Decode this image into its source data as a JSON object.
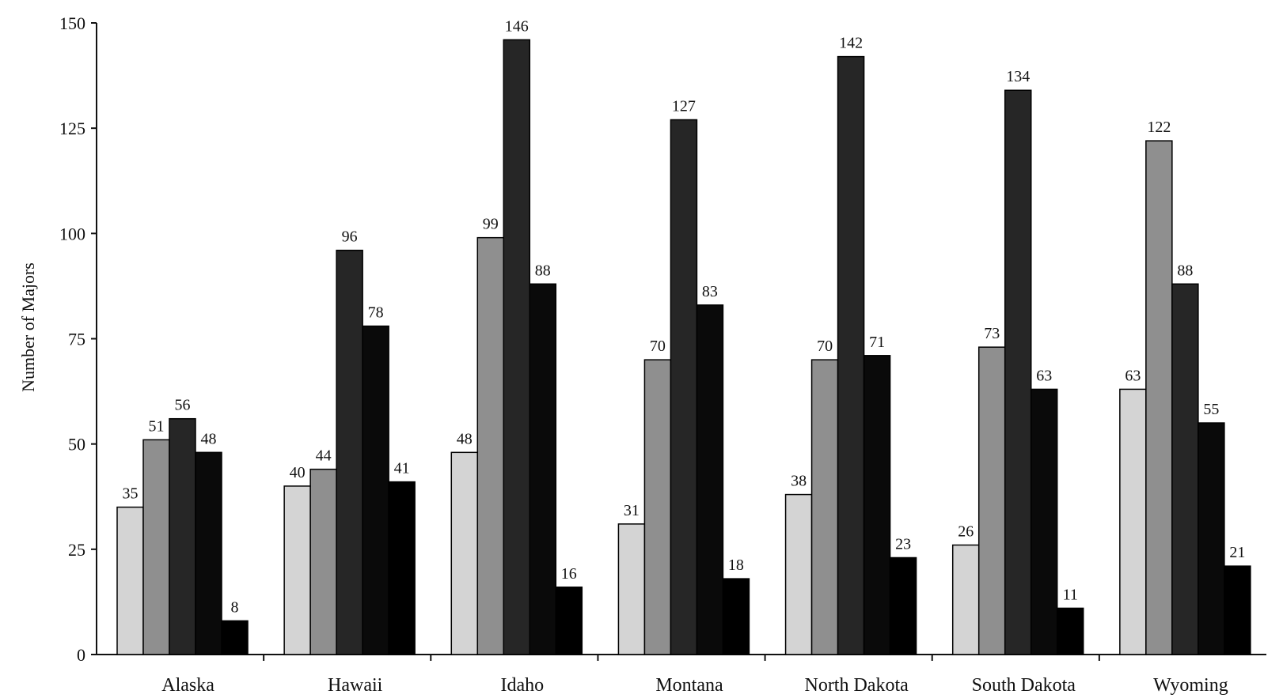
{
  "chart_data": {
    "type": "bar",
    "title": "",
    "xlabel": "",
    "ylabel": "Number of Majors",
    "ylim": [
      0,
      150
    ],
    "yticks": [
      0,
      25,
      50,
      75,
      100,
      125,
      150
    ],
    "grid": false,
    "legend": "none",
    "categories": [
      "Alaska",
      "Hawaii",
      "Idaho",
      "Montana",
      "North Dakota",
      "South Dakota",
      "Wyoming"
    ],
    "series": [
      {
        "color": "#d4d4d4",
        "values": [
          35,
          40,
          48,
          31,
          38,
          26,
          63
        ]
      },
      {
        "color": "#8f8f8f",
        "values": [
          51,
          44,
          99,
          70,
          70,
          73,
          122
        ]
      },
      {
        "color": "#262626",
        "values": [
          56,
          96,
          146,
          127,
          142,
          134,
          88
        ]
      },
      {
        "color": "#0a0a0a",
        "values": [
          48,
          78,
          88,
          83,
          71,
          63,
          55
        ]
      },
      {
        "color": "#000000",
        "values": [
          8,
          41,
          16,
          18,
          23,
          11,
          21
        ]
      }
    ]
  }
}
